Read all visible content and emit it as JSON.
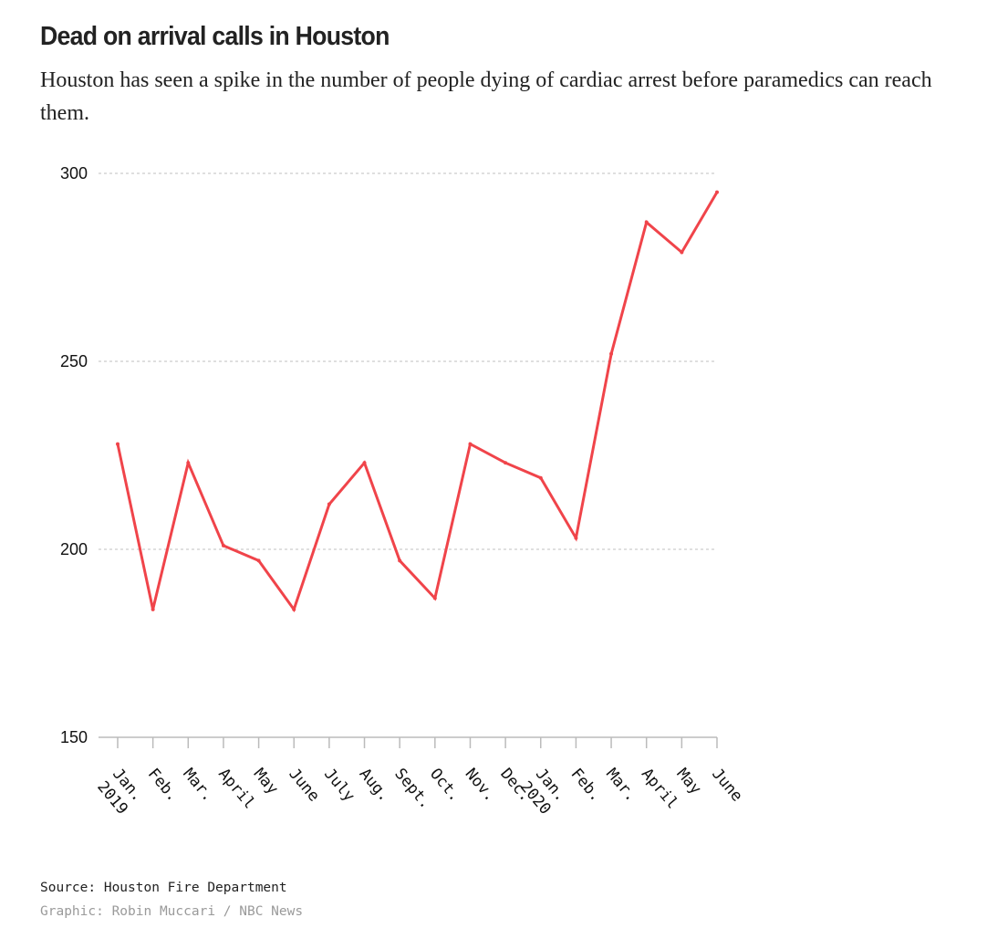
{
  "header": {
    "title": "Dead on arrival calls in Houston",
    "subtitle": "Houston has seen a spike in the number of people dying of cardiac arrest before paramedics can reach them."
  },
  "footer": {
    "source": "Source: Houston Fire Department",
    "credit": "Graphic: Robin Muccari / NBC News"
  },
  "colors": {
    "line": "#f0444a",
    "grid": "#cccccc",
    "axis": "#bbbbbb"
  },
  "chart_data": {
    "type": "line",
    "title": "Dead on arrival calls in Houston",
    "xlabel": "",
    "ylabel": "",
    "ylim": [
      150,
      300
    ],
    "yticks": [
      150,
      200,
      250,
      300
    ],
    "grid": true,
    "categories": [
      "Jan. 2019",
      "Feb.",
      "Mar.",
      "April",
      "May",
      "June",
      "July",
      "Aug.",
      "Sept.",
      "Oct.",
      "Nov.",
      "Dec.",
      "Jan. 2020",
      "Feb.",
      "Mar.",
      "April",
      "May",
      "June"
    ],
    "tick_labels": [
      [
        "Jan.",
        "2019"
      ],
      [
        "Feb."
      ],
      [
        "Mar."
      ],
      [
        "April"
      ],
      [
        "May"
      ],
      [
        "June"
      ],
      [
        "July"
      ],
      [
        "Aug."
      ],
      [
        "Sept."
      ],
      [
        "Oct."
      ],
      [
        "Nov."
      ],
      [
        "Dec."
      ],
      [
        "Jan.",
        "2020"
      ],
      [
        "Feb."
      ],
      [
        "Mar."
      ],
      [
        "April"
      ],
      [
        "May"
      ],
      [
        "June"
      ]
    ],
    "values": [
      228,
      184,
      223,
      201,
      197,
      184,
      212,
      223,
      197,
      187,
      228,
      223,
      219,
      203,
      252,
      287,
      279,
      295
    ]
  }
}
